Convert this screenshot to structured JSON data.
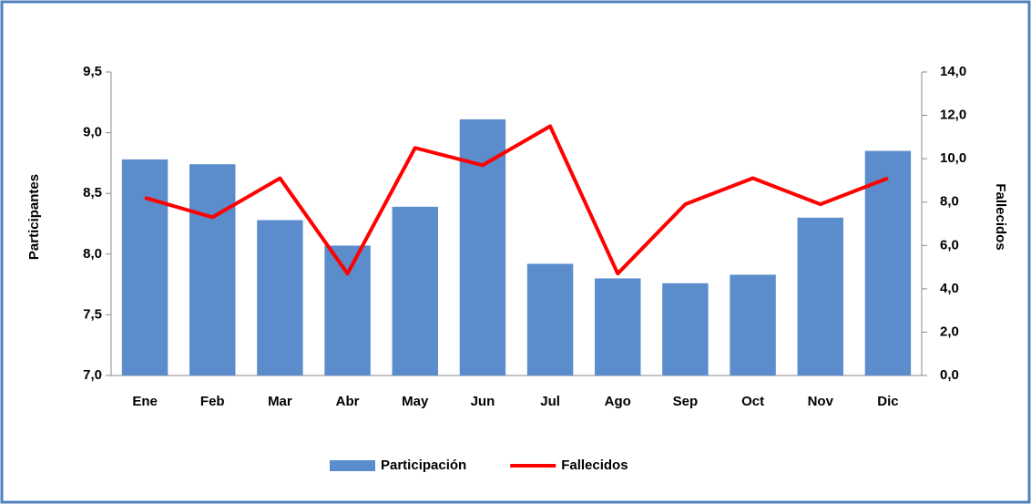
{
  "chart_data": {
    "type": "bar-line",
    "categories": [
      "Ene",
      "Feb",
      "Mar",
      "Abr",
      "May",
      "Jun",
      "Jul",
      "Ago",
      "Sep",
      "Oct",
      "Nov",
      "Dic"
    ],
    "series": [
      {
        "name": "Participación",
        "type": "bar",
        "color": "#5b8ccb",
        "values": [
          8.78,
          8.74,
          8.28,
          8.07,
          8.39,
          9.11,
          7.92,
          7.8,
          7.76,
          7.83,
          8.3,
          8.85
        ]
      },
      {
        "name": "Fallecidos",
        "type": "line",
        "axis": "y2",
        "color": "#ff0000",
        "values": [
          8.2,
          7.3,
          9.1,
          4.7,
          10.5,
          9.7,
          11.5,
          4.7,
          7.9,
          9.1,
          7.9,
          9.1
        ]
      }
    ],
    "ylabel": "Participantes",
    "y2label": "Fallecidos",
    "ylim": [
      7.0,
      9.5
    ],
    "yticks": [
      {
        "value": 7.0,
        "label": "7,0"
      },
      {
        "value": 7.5,
        "label": "7,5"
      },
      {
        "value": 8.0,
        "label": "8,0"
      },
      {
        "value": 8.5,
        "label": "8,5"
      },
      {
        "value": 9.0,
        "label": "9,0"
      },
      {
        "value": 9.5,
        "label": "9,5"
      }
    ],
    "y2lim": [
      0,
      14
    ],
    "y2ticks": [
      {
        "value": 0,
        "label": "0,0"
      },
      {
        "value": 2,
        "label": "2,0"
      },
      {
        "value": 4,
        "label": "4,0"
      },
      {
        "value": 6,
        "label": "6,0"
      },
      {
        "value": 8,
        "label": "8,0"
      },
      {
        "value": 10,
        "label": "10,0"
      },
      {
        "value": 12,
        "label": "12,0"
      },
      {
        "value": 14,
        "label": "14,0"
      }
    ],
    "legend": "bottom"
  }
}
